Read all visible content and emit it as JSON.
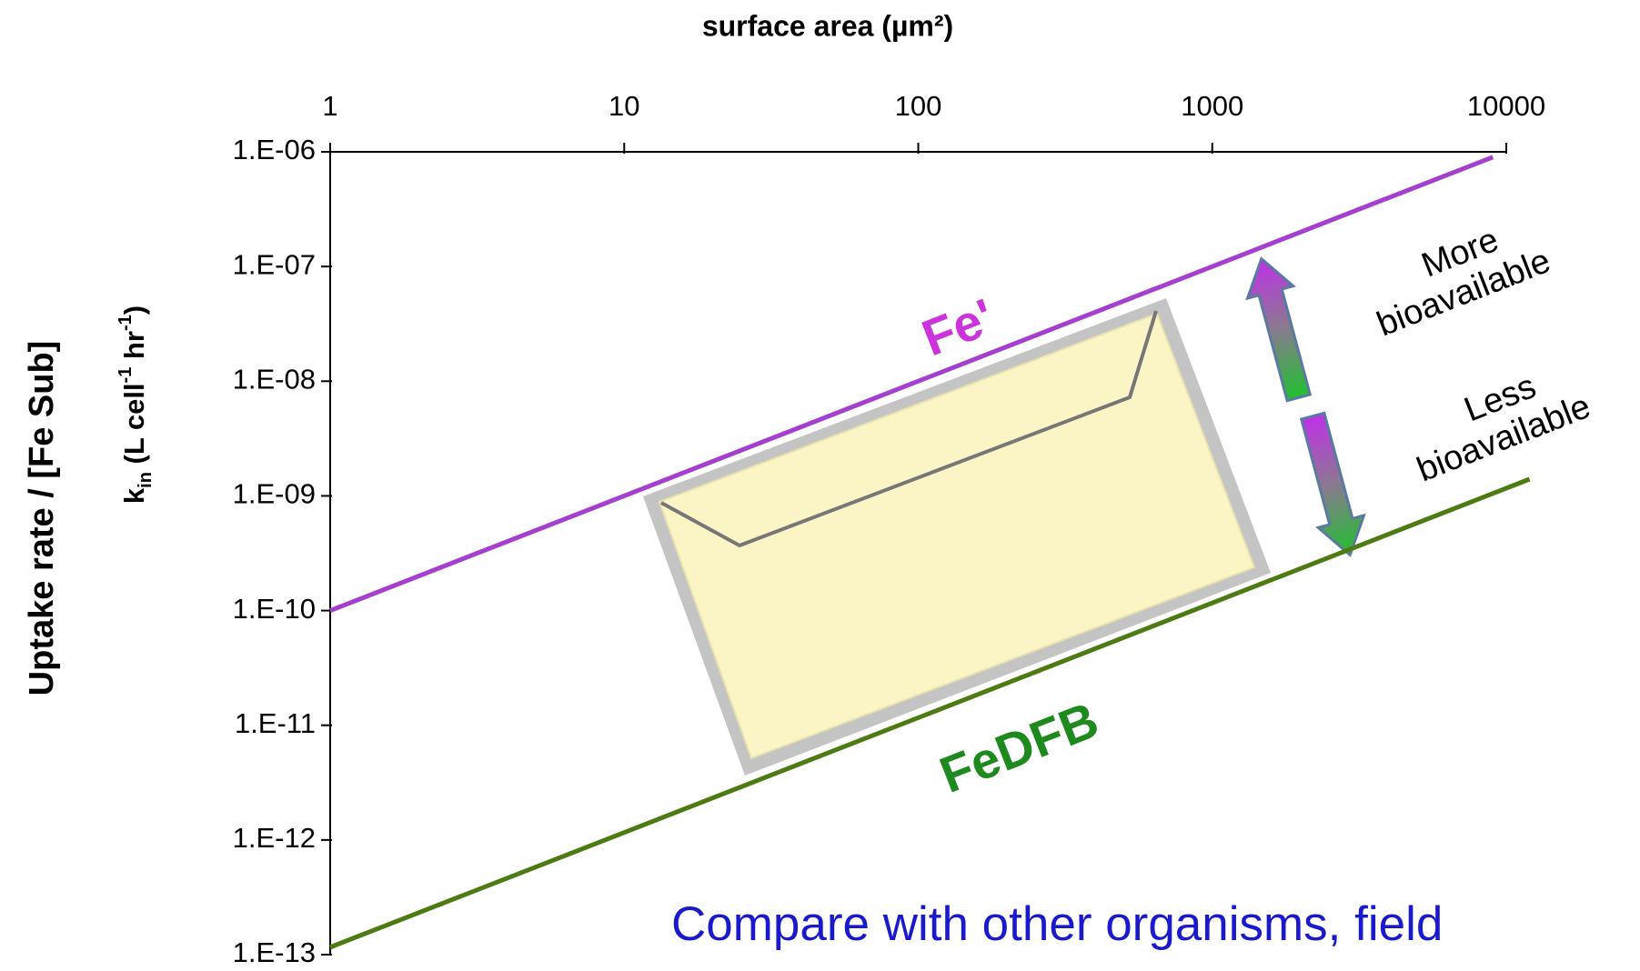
{
  "chart_data": {
    "type": "line",
    "title": "surface area (µm²)",
    "y_label_outer": "Uptake rate / [Fe Sub]",
    "y_label_inner": [
      "k",
      "in",
      " (L cell",
      "-1",
      " hr",
      "-1",
      ")"
    ],
    "xlim": [
      1,
      10000
    ],
    "ylim": [
      1e-13,
      1e-06
    ],
    "xlog": true,
    "ylog": true,
    "xticks": [
      1,
      10,
      100,
      1000,
      10000
    ],
    "yticks": [
      {
        "value": 1e-13,
        "label": "1.E-13"
      },
      {
        "value": 1e-12,
        "label": "1.E-12"
      },
      {
        "value": 1e-11,
        "label": "1.E-11"
      },
      {
        "value": 1e-10,
        "label": "1.E-10"
      },
      {
        "value": 1e-09,
        "label": "1.E-09"
      },
      {
        "value": 1e-08,
        "label": "1.E-08"
      },
      {
        "value": 1e-07,
        "label": "1.E-07"
      },
      {
        "value": 1e-06,
        "label": "1.E-06"
      }
    ],
    "series": [
      {
        "name": "Fe'",
        "color": "#a43fd0",
        "x": [
          1,
          9000
        ],
        "values": [
          1e-10,
          9e-07
        ]
      },
      {
        "name": "FeDFB",
        "color": "#4d7a12",
        "x": [
          1,
          12000
        ],
        "values": [
          1.16e-13,
          1.4e-09
        ]
      }
    ],
    "annotations": {
      "more": [
        "More",
        "bioavailable"
      ],
      "less": [
        "Less",
        "bioavailable"
      ],
      "note": "Compare with other organisms, field"
    }
  }
}
